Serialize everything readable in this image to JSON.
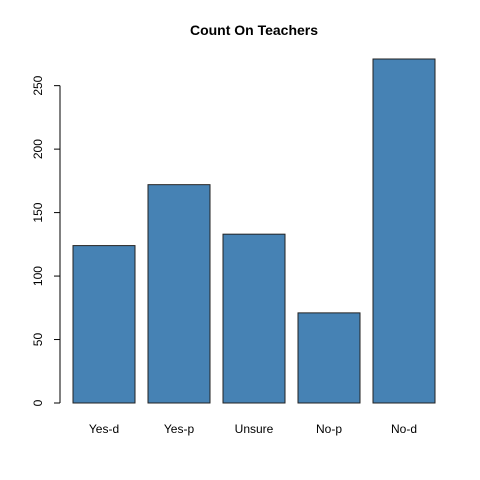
{
  "chart_data": {
    "type": "bar",
    "title": "Count On Teachers",
    "xlabel": "",
    "ylabel": "",
    "categories": [
      "Yes-d",
      "Yes-p",
      "Unsure",
      "No-p",
      "No-d"
    ],
    "values": [
      124,
      172,
      133,
      71,
      271
    ],
    "ylim": [
      0,
      271
    ],
    "yticks": [
      0,
      50,
      100,
      150,
      200,
      250
    ],
    "bar_color": "#4682b4",
    "grid": false,
    "legend": "none"
  }
}
